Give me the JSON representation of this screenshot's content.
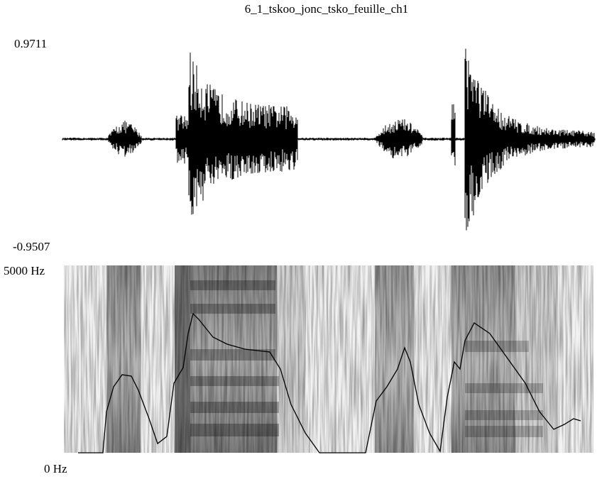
{
  "title": "6_1_tskoo_jonc_tsko_feuille_ch1",
  "waveform": {
    "max_label": "0.9711",
    "min_label": "-0.9507"
  },
  "spectrogram": {
    "top_label": "5000 Hz",
    "bottom_label": "0 Hz"
  }
}
